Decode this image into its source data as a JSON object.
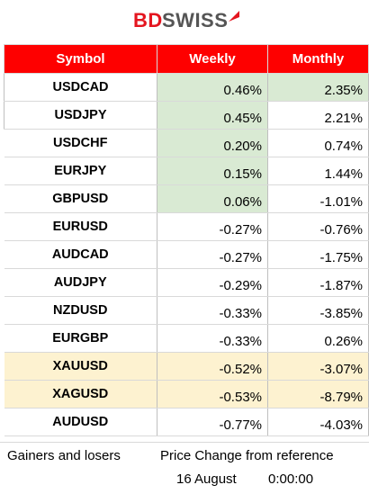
{
  "logo": {
    "part1": "BD",
    "part2": "SWISS",
    "mark": "arrow-mark-icon"
  },
  "table": {
    "headers": {
      "symbol": "Symbol",
      "weekly": "Weekly",
      "monthly": "Monthly"
    },
    "rows": [
      {
        "symbol": "USDCAD",
        "weekly": "0.46%",
        "monthly": "2.35%",
        "weekly_bg": "#d9ead3",
        "monthly_bg": "#d9ead3",
        "symbol_bg": ""
      },
      {
        "symbol": "USDJPY",
        "weekly": "0.45%",
        "monthly": "2.21%",
        "weekly_bg": "#d9ead3",
        "monthly_bg": "",
        "symbol_bg": ""
      },
      {
        "symbol": "USDCHF",
        "weekly": "0.20%",
        "monthly": "0.74%",
        "weekly_bg": "#d9ead3",
        "monthly_bg": "",
        "symbol_bg": ""
      },
      {
        "symbol": "EURJPY",
        "weekly": "0.15%",
        "monthly": "1.44%",
        "weekly_bg": "#d9ead3",
        "monthly_bg": "",
        "symbol_bg": ""
      },
      {
        "symbol": "GBPUSD",
        "weekly": "0.06%",
        "monthly": "-1.01%",
        "weekly_bg": "#d9ead3",
        "monthly_bg": "",
        "symbol_bg": ""
      },
      {
        "symbol": "EURUSD",
        "weekly": "-0.27%",
        "monthly": "-0.76%",
        "weekly_bg": "",
        "monthly_bg": "",
        "symbol_bg": ""
      },
      {
        "symbol": "AUDCAD",
        "weekly": "-0.27%",
        "monthly": "-1.75%",
        "weekly_bg": "",
        "monthly_bg": "",
        "symbol_bg": ""
      },
      {
        "symbol": "AUDJPY",
        "weekly": "-0.29%",
        "monthly": "-1.87%",
        "weekly_bg": "",
        "monthly_bg": "",
        "symbol_bg": ""
      },
      {
        "symbol": "NZDUSD",
        "weekly": "-0.33%",
        "monthly": "-3.85%",
        "weekly_bg": "",
        "monthly_bg": "",
        "symbol_bg": ""
      },
      {
        "symbol": "EURGBP",
        "weekly": "-0.33%",
        "monthly": "0.26%",
        "weekly_bg": "",
        "monthly_bg": "",
        "symbol_bg": ""
      },
      {
        "symbol": "XAUUSD",
        "weekly": "-0.52%",
        "monthly": "-3.07%",
        "weekly_bg": "#fdf2d0",
        "monthly_bg": "#fdf2d0",
        "symbol_bg": "#fdf2d0"
      },
      {
        "symbol": "XAGUSD",
        "weekly": "-0.53%",
        "monthly": "-8.79%",
        "weekly_bg": "#fdf2d0",
        "monthly_bg": "#fdf2d0",
        "symbol_bg": "#fdf2d0"
      },
      {
        "symbol": "AUDUSD",
        "weekly": "-0.77%",
        "monthly": "-4.03%",
        "weekly_bg": "",
        "monthly_bg": "",
        "symbol_bg": ""
      }
    ]
  },
  "footer": {
    "label": "Gainers and losers",
    "reference": "Price Change from reference",
    "date": "16 August",
    "time": "0:00:00"
  },
  "colors": {
    "header_red": "#fe0000",
    "gainer_green": "#d9ead3",
    "metal_tan": "#fdf2d0"
  }
}
